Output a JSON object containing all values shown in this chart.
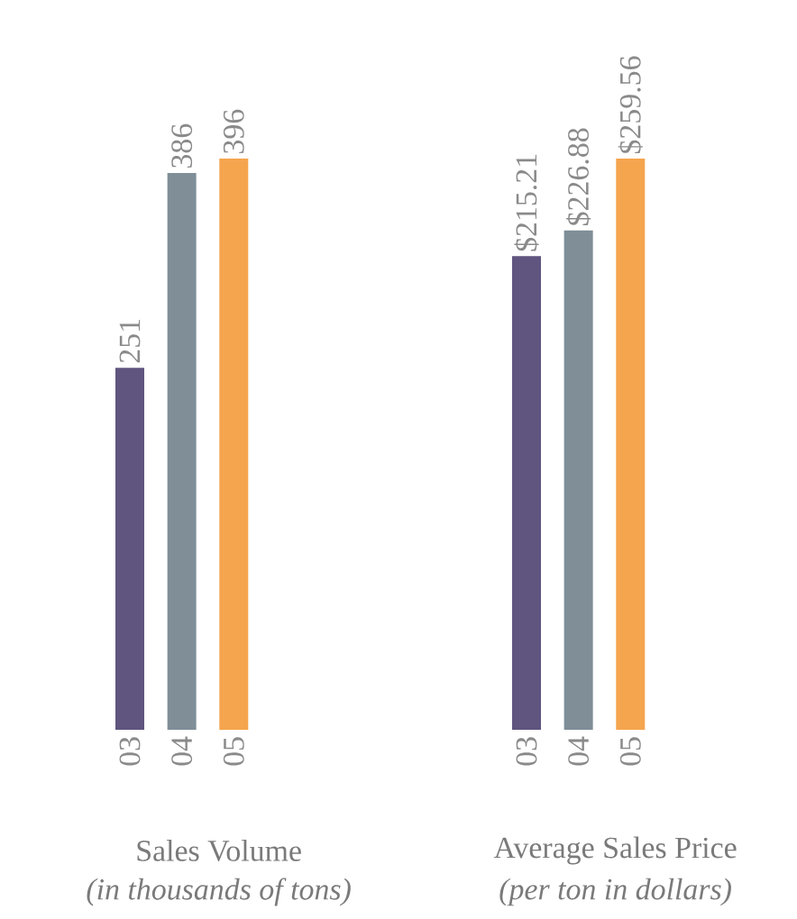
{
  "chart_data": [
    {
      "type": "bar",
      "title": "Sales Volume",
      "subtitle": "(in thousands of tons)",
      "categories": [
        "03",
        "04",
        "05"
      ],
      "values": [
        251,
        386,
        396
      ],
      "colors": [
        "#5f557f",
        "#7f8e97",
        "#f5a54e"
      ],
      "data_labels": true,
      "tick_labels": "x"
    },
    {
      "type": "bar",
      "title": "Average Sales Price",
      "subtitle": "(per ton in dollars)",
      "categories": [
        "03",
        "04",
        "05"
      ],
      "values": [
        215.21,
        226.88,
        259.56
      ],
      "colors": [
        "#5f557f",
        "#7f8e97",
        "#f5a54e"
      ],
      "value_labels": [
        "$215.21",
        "$226.88",
        "$259.56"
      ],
      "tick_labels": "x"
    }
  ]
}
